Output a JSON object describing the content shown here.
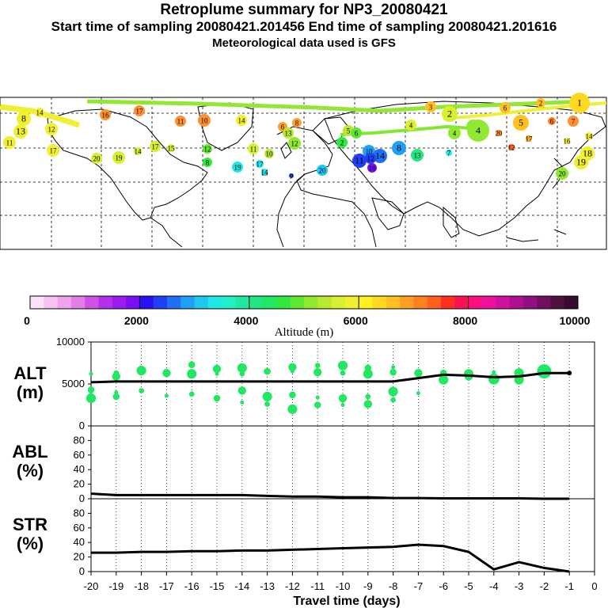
{
  "header": {
    "title": "Retroplume summary for NP3_20080421",
    "sampling_line": "Start time of sampling 20080421.201456     End time of sampling 20080421.201616",
    "met_line": "Meteorological data used is GFS"
  },
  "colorbar": {
    "label": "Altitude (m)",
    "ticks": [
      "0",
      "2000",
      "4000",
      "6000",
      "8000",
      "10000"
    ],
    "colors": [
      "#fde0fa",
      "#f7c2f3",
      "#eea3ec",
      "#e27fe6",
      "#cf52e6",
      "#b530ea",
      "#9a1cf0",
      "#7a10f3",
      "#2a10f5",
      "#2040f5",
      "#2070f5",
      "#20a0f5",
      "#20c8f0",
      "#20e8e8",
      "#20f0c8",
      "#20e8a0",
      "#20e880",
      "#20e860",
      "#30e840",
      "#60e830",
      "#90e830",
      "#b8e830",
      "#d8f030",
      "#f0f030",
      "#fff020",
      "#ffd820",
      "#ffc020",
      "#ffa020",
      "#ff8020",
      "#ff6020",
      "#ff3020",
      "#ff1050",
      "#ff1080",
      "#f010a0",
      "#d010a0",
      "#b01090",
      "#901080",
      "#701060",
      "#501040",
      "#3a0a30"
    ]
  },
  "map": {
    "labels": [
      "1",
      "2",
      "3",
      "4",
      "5",
      "6",
      "7",
      "8",
      "9",
      "10",
      "11",
      "12",
      "13",
      "14",
      "15",
      "16",
      "17",
      "18",
      "19",
      "20"
    ]
  },
  "chart_data": [
    {
      "type": "line",
      "panel": "ALT",
      "ylabel": "ALT\n(m)",
      "ylabel_lines": [
        "ALT",
        "(m)"
      ],
      "ylim": [
        0,
        10000
      ],
      "yticks": [
        "0",
        "5000",
        "10000"
      ],
      "x": [
        -20,
        -19,
        -18,
        -17,
        -16,
        -15,
        -14,
        -13,
        -12,
        -11,
        -10,
        -9,
        -8,
        -7,
        -6,
        -5,
        -4,
        -3,
        -2,
        -1
      ],
      "series": [
        {
          "name": "median altitude",
          "values": [
            5200,
            5300,
            5300,
            5300,
            5300,
            5300,
            5300,
            5300,
            5300,
            5300,
            5300,
            5300,
            5300,
            5700,
            6100,
            6000,
            5800,
            5900,
            6300,
            6300
          ]
        }
      ],
      "scatter_points": [
        {
          "x": -20,
          "y": 6200
        },
        {
          "x": -20,
          "y": 4300
        },
        {
          "x": -20,
          "y": 3300
        },
        {
          "x": -19,
          "y": 6300
        },
        {
          "x": -19,
          "y": 5900
        },
        {
          "x": -19,
          "y": 4000
        },
        {
          "x": -19,
          "y": 3500
        },
        {
          "x": -18,
          "y": 6600
        },
        {
          "x": -18,
          "y": 4200
        },
        {
          "x": -17,
          "y": 6300
        },
        {
          "x": -17,
          "y": 3600
        },
        {
          "x": -16,
          "y": 7300
        },
        {
          "x": -16,
          "y": 6200
        },
        {
          "x": -16,
          "y": 3800
        },
        {
          "x": -15,
          "y": 6800
        },
        {
          "x": -15,
          "y": 6200
        },
        {
          "x": -15,
          "y": 3300
        },
        {
          "x": -14,
          "y": 6900
        },
        {
          "x": -14,
          "y": 6200
        },
        {
          "x": -14,
          "y": 4200
        },
        {
          "x": -14,
          "y": 2800
        },
        {
          "x": -13,
          "y": 6500
        },
        {
          "x": -13,
          "y": 3500
        },
        {
          "x": -13,
          "y": 2600
        },
        {
          "x": -12,
          "y": 7000
        },
        {
          "x": -12,
          "y": 6500
        },
        {
          "x": -12,
          "y": 3700
        },
        {
          "x": -12,
          "y": 2000
        },
        {
          "x": -11,
          "y": 7200
        },
        {
          "x": -11,
          "y": 6400
        },
        {
          "x": -11,
          "y": 3400
        },
        {
          "x": -11,
          "y": 2500
        },
        {
          "x": -10,
          "y": 7200
        },
        {
          "x": -10,
          "y": 6300
        },
        {
          "x": -10,
          "y": 3300
        },
        {
          "x": -10,
          "y": 2500
        },
        {
          "x": -9,
          "y": 6900
        },
        {
          "x": -9,
          "y": 6200
        },
        {
          "x": -9,
          "y": 3500
        },
        {
          "x": -9,
          "y": 2600
        },
        {
          "x": -8,
          "y": 7000
        },
        {
          "x": -8,
          "y": 6400
        },
        {
          "x": -8,
          "y": 4100
        },
        {
          "x": -8,
          "y": 3100
        },
        {
          "x": -7,
          "y": 6300
        },
        {
          "x": -7,
          "y": 3900
        },
        {
          "x": -6,
          "y": 6300
        },
        {
          "x": -6,
          "y": 5500
        },
        {
          "x": -5,
          "y": 6400
        },
        {
          "x": -5,
          "y": 5900
        },
        {
          "x": -4,
          "y": 6400
        },
        {
          "x": -4,
          "y": 5500
        },
        {
          "x": -3,
          "y": 6300
        },
        {
          "x": -3,
          "y": 5400
        },
        {
          "x": -2,
          "y": 6500
        },
        {
          "x": -1,
          "y": 6300
        }
      ]
    },
    {
      "type": "line",
      "panel": "ABL",
      "ylabel": "ABL\n(%)",
      "ylabel_lines": [
        "ABL",
        "(%)"
      ],
      "ylim": [
        0,
        100
      ],
      "yticks": [
        "0",
        "20",
        "40",
        "60",
        "80"
      ],
      "x": [
        -20,
        -19,
        -18,
        -17,
        -16,
        -15,
        -14,
        -13,
        -12,
        -11,
        -10,
        -9,
        -8,
        -7,
        -6,
        -5,
        -4,
        -3,
        -2,
        -1
      ],
      "series": [
        {
          "name": "ABL fraction",
          "values": [
            7,
            5,
            5,
            5,
            5,
            5,
            5,
            4,
            3,
            3,
            2,
            2,
            1,
            1,
            0.5,
            0.5,
            0.5,
            0.5,
            0,
            0
          ]
        }
      ]
    },
    {
      "type": "line",
      "panel": "STR",
      "ylabel": "STR\n(%)",
      "ylabel_lines": [
        "STR",
        "(%)"
      ],
      "ylim": [
        0,
        100
      ],
      "yticks": [
        "0",
        "20",
        "40",
        "60",
        "80"
      ],
      "xlabel": "Travel time (days)",
      "xticks": [
        "-20",
        "-19",
        "-18",
        "-17",
        "-16",
        "-15",
        "-14",
        "-13",
        "-12",
        "-11",
        "-10",
        "-9",
        "-8",
        "-7",
        "-6",
        "-5",
        "-4",
        "-3",
        "-2",
        "-1",
        "0"
      ],
      "x": [
        -20,
        -19,
        -18,
        -17,
        -16,
        -15,
        -14,
        -13,
        -12,
        -11,
        -10,
        -9,
        -8,
        -7,
        -6,
        -5,
        -4,
        -3,
        -2,
        -1
      ],
      "series": [
        {
          "name": "stratospheric fraction",
          "values": [
            26,
            26,
            27,
            27,
            28,
            28,
            29,
            29,
            30,
            31,
            32,
            33,
            34,
            37,
            35,
            27,
            3,
            13,
            5,
            0
          ]
        }
      ]
    }
  ]
}
